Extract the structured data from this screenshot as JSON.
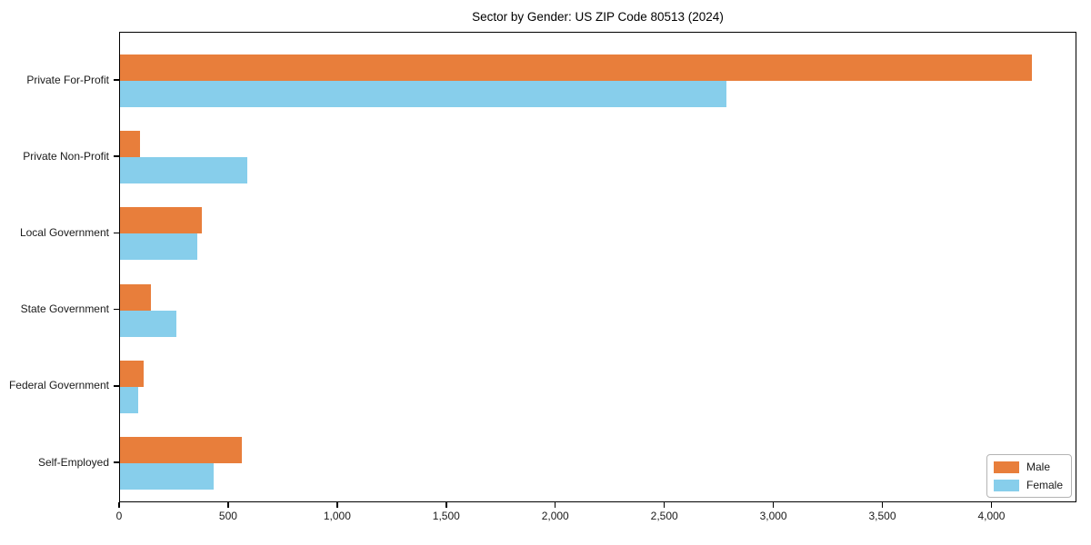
{
  "chart_data": {
    "type": "bar",
    "orientation": "horizontal",
    "title": "Sector by Gender: US ZIP Code 80513 (2024)",
    "categories": [
      "Private For-Profit",
      "Private Non-Profit",
      "Local Government",
      "State Government",
      "Federal Government",
      "Self-Employed"
    ],
    "series": [
      {
        "name": "Male",
        "color": "#E87E3B",
        "values": [
          4180,
          90,
          375,
          140,
          110,
          560
        ]
      },
      {
        "name": "Female",
        "color": "#87CEEB",
        "values": [
          2780,
          585,
          353,
          260,
          85,
          430
        ]
      }
    ],
    "xlabel": "",
    "ylabel": "",
    "xlim": [
      0,
      4390
    ],
    "xticks": [
      0,
      500,
      1000,
      1500,
      2000,
      2500,
      3000,
      3500,
      4000
    ],
    "xtick_labels": [
      "0",
      "500",
      "1,000",
      "1,500",
      "2,000",
      "2,500",
      "3,000",
      "3,500",
      "4,000"
    ],
    "grid": false,
    "legend_position": "lower right"
  }
}
